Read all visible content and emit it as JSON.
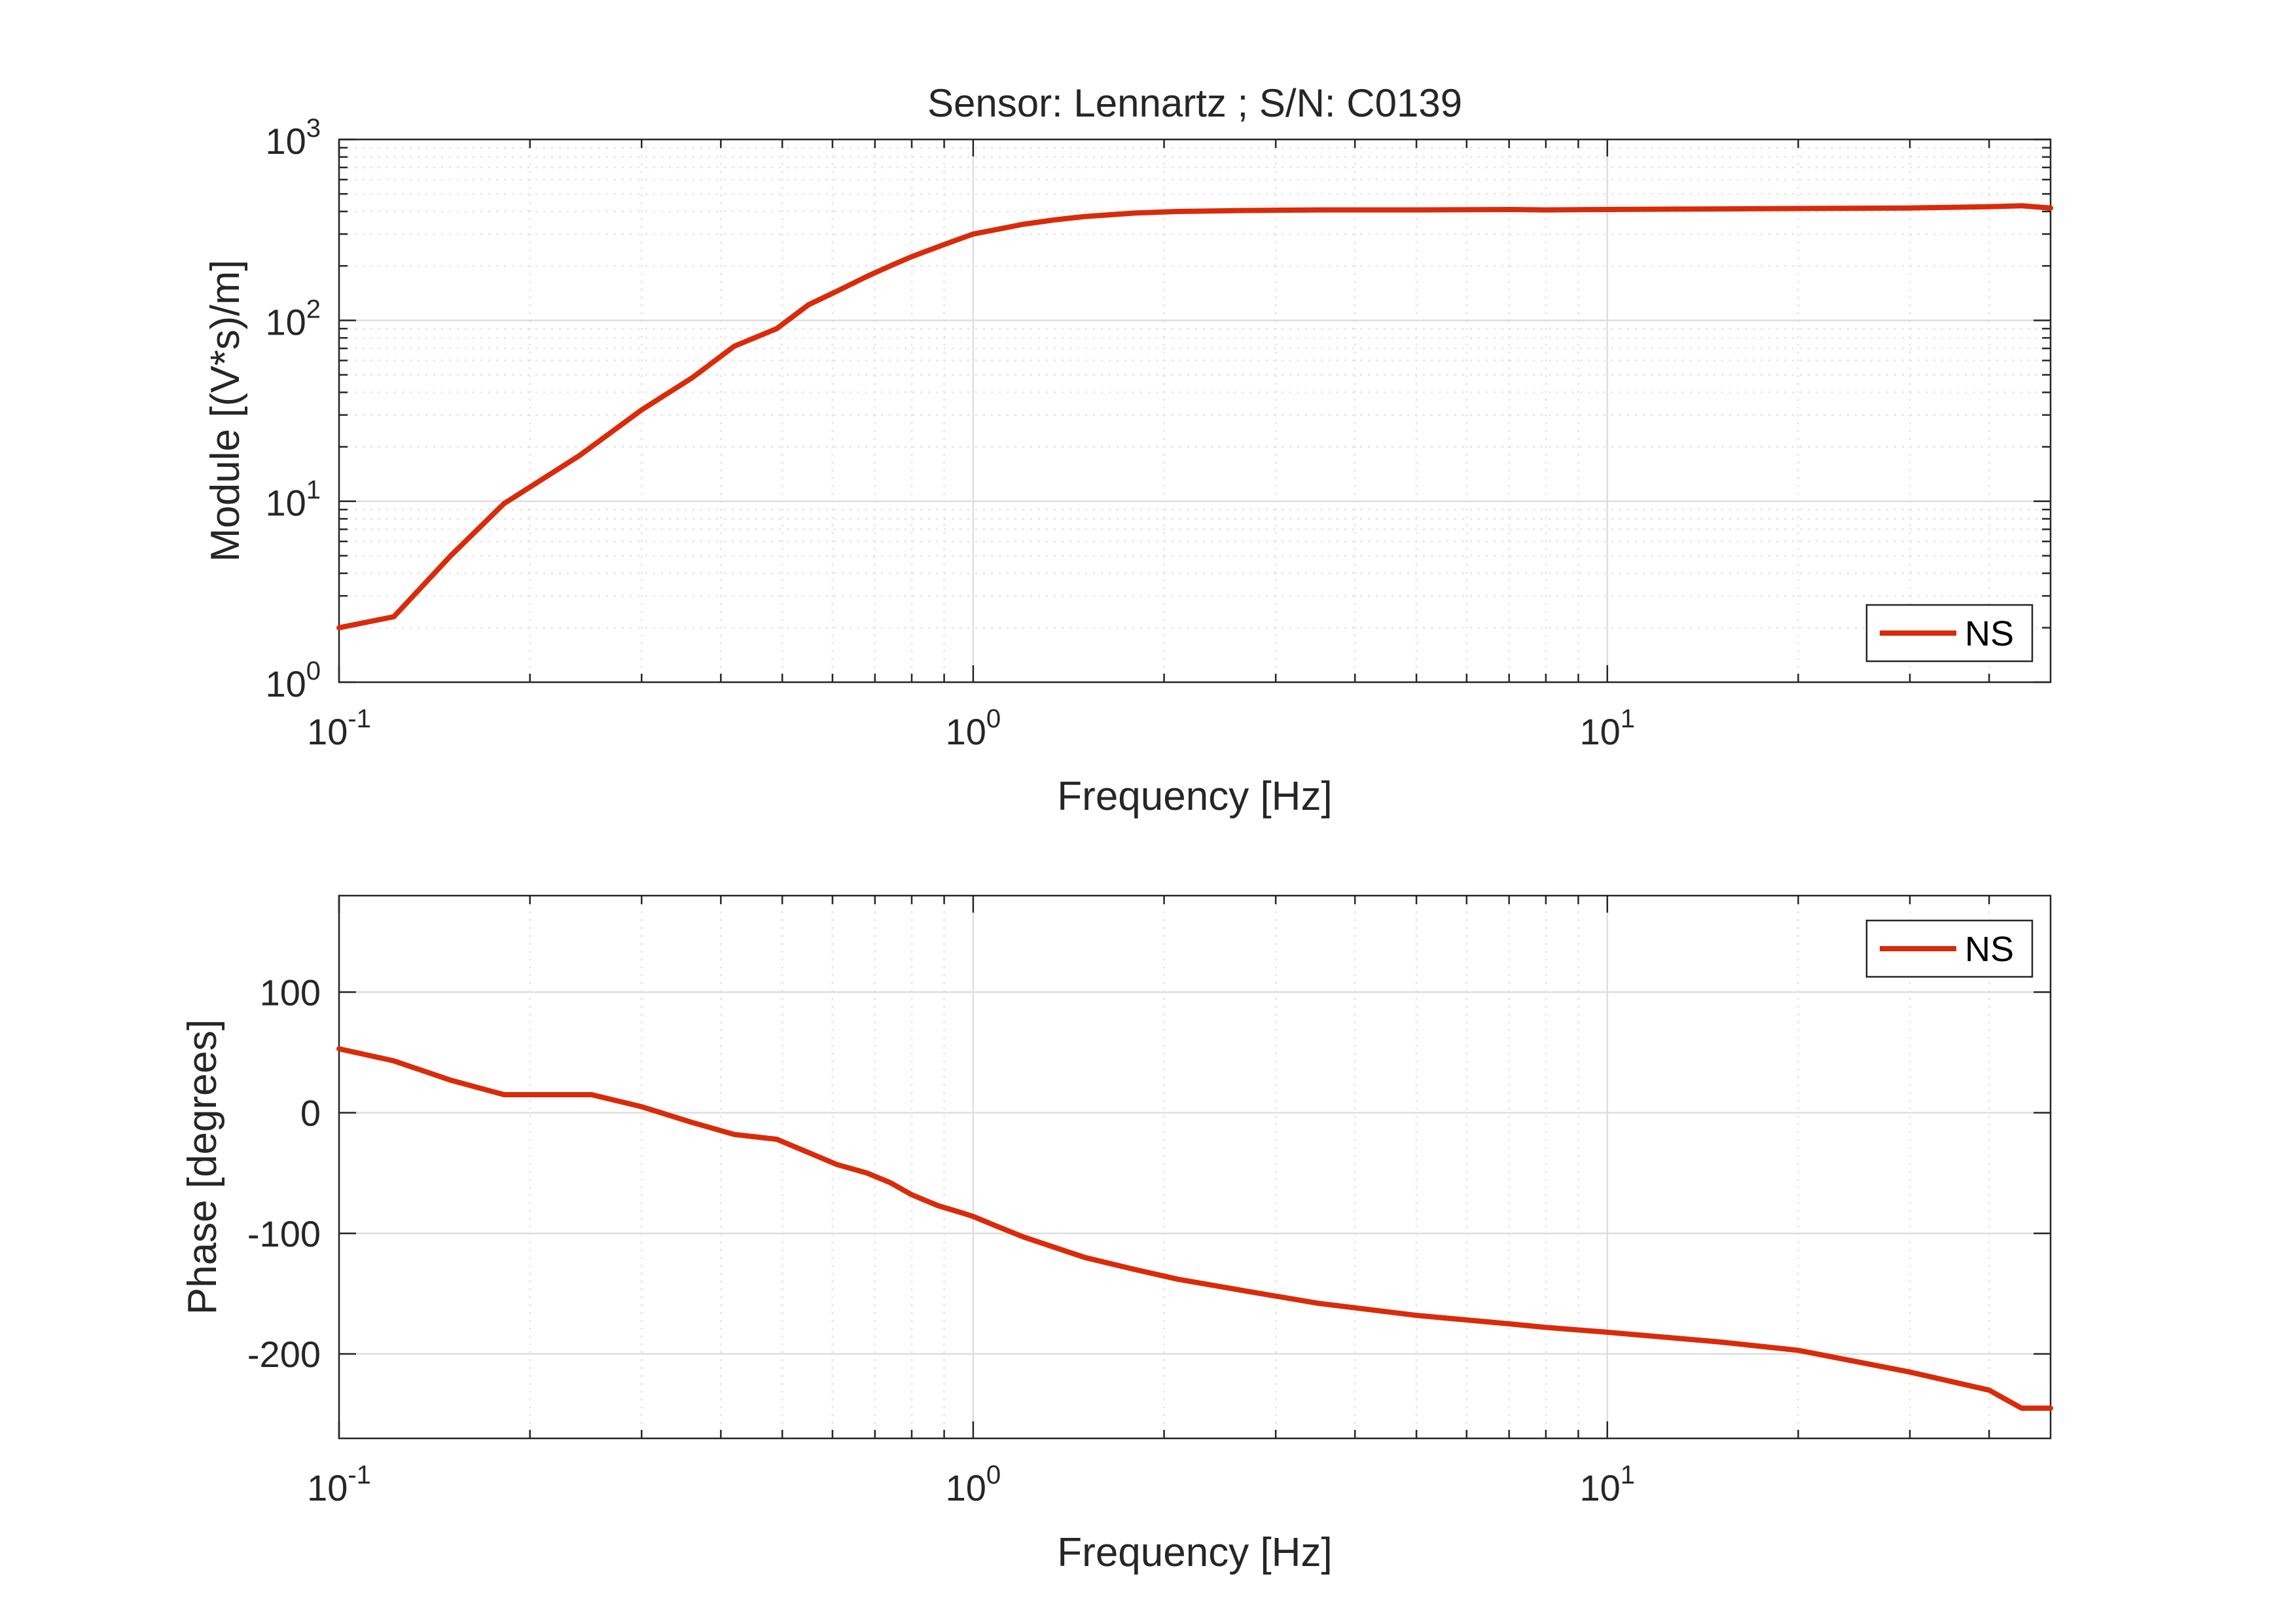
{
  "colors": {
    "series": "#D92B0A",
    "grid_major": "#dedede",
    "grid_minor": "#e4e4e4",
    "axis": "#262626",
    "text": "#262626"
  },
  "chart_data": [
    {
      "type": "line",
      "title": "Sensor: Lennartz ; S/N: C0139",
      "xlabel": "Frequency [Hz]",
      "ylabel": "Module [(V*s)/m]",
      "xscale": "log",
      "yscale": "log",
      "xlim": [
        0.1,
        50
      ],
      "ylim": [
        1,
        1000
      ],
      "grid": true,
      "minor_grid": true,
      "legend_position": "bottom-right",
      "x_ticks": [
        {
          "base": "10",
          "exp": "-1",
          "value": 0.1
        },
        {
          "base": "10",
          "exp": "0",
          "value": 1
        },
        {
          "base": "10",
          "exp": "1",
          "value": 10
        }
      ],
      "y_ticks": [
        {
          "base": "10",
          "exp": "0",
          "value": 1
        },
        {
          "base": "10",
          "exp": "1",
          "value": 10
        },
        {
          "base": "10",
          "exp": "2",
          "value": 100
        },
        {
          "base": "10",
          "exp": "3",
          "value": 1000
        }
      ],
      "series": [
        {
          "name": "NS",
          "color": "#D92B0A",
          "x": [
            0.1,
            0.122,
            0.15,
            0.182,
            0.24,
            0.3,
            0.36,
            0.42,
            0.49,
            0.55,
            0.61,
            0.68,
            0.74,
            0.8,
            0.88,
            0.96,
            1.0,
            1.1,
            1.2,
            1.35,
            1.5,
            1.8,
            2.1,
            2.7,
            3.5,
            5,
            7,
            8,
            10,
            15,
            20,
            30,
            40,
            45,
            50
          ],
          "y": [
            2.0,
            2.3,
            5.0,
            9.7,
            18,
            32,
            48,
            72,
            90,
            122,
            145,
            175,
            200,
            225,
            255,
            285,
            300,
            320,
            340,
            360,
            375,
            392,
            400,
            405,
            408,
            408,
            410,
            408,
            410,
            413,
            415,
            418,
            425,
            430,
            418
          ]
        }
      ]
    },
    {
      "type": "line",
      "title": "",
      "xlabel": "Frequency [Hz]",
      "ylabel": "Phase [degrees]",
      "xscale": "log",
      "yscale": "linear",
      "xlim": [
        0.1,
        50
      ],
      "ylim": [
        -270,
        180
      ],
      "grid": true,
      "minor_grid": true,
      "legend_position": "top-right",
      "x_ticks": [
        {
          "base": "10",
          "exp": "-1",
          "value": 0.1
        },
        {
          "base": "10",
          "exp": "0",
          "value": 1
        },
        {
          "base": "10",
          "exp": "1",
          "value": 10
        }
      ],
      "y_ticks": [
        {
          "label": "100",
          "value": 100
        },
        {
          "label": "0",
          "value": 0
        },
        {
          "label": "-100",
          "value": -100
        },
        {
          "label": "-200",
          "value": -200
        }
      ],
      "series": [
        {
          "name": "NS",
          "color": "#D92B0A",
          "x": [
            0.1,
            0.122,
            0.15,
            0.182,
            0.25,
            0.3,
            0.36,
            0.42,
            0.49,
            0.55,
            0.61,
            0.68,
            0.74,
            0.8,
            0.88,
            0.96,
            1.0,
            1.1,
            1.2,
            1.35,
            1.5,
            1.8,
            2.1,
            2.7,
            3.5,
            5,
            7,
            8,
            10,
            15,
            20,
            30,
            40,
            45,
            50
          ],
          "y": [
            53,
            43,
            27,
            15,
            15,
            5,
            -8,
            -18,
            -22,
            -33,
            -43,
            -50,
            -58,
            -68,
            -77,
            -83,
            -86,
            -95,
            -103,
            -112,
            -120,
            -130,
            -138,
            -148,
            -158,
            -168,
            -175,
            -178,
            -182,
            -190,
            -197,
            -215,
            -230,
            -245,
            -245
          ]
        }
      ]
    }
  ]
}
